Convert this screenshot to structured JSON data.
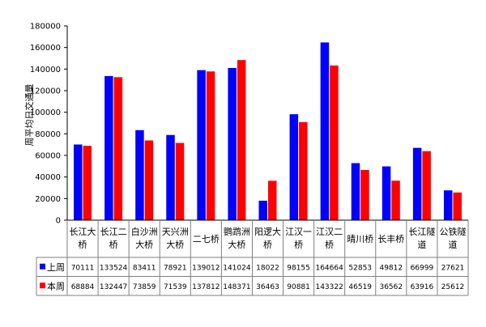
{
  "chart_data": {
    "type": "bar",
    "ylabel": "周平均日交通量",
    "ylim": [
      0,
      180000
    ],
    "yticks": [
      0,
      20000,
      40000,
      60000,
      80000,
      100000,
      120000,
      140000,
      160000,
      180000
    ],
    "grid": "off",
    "legend": "data-table-left",
    "categories": [
      [
        "长江大",
        "桥"
      ],
      [
        "长江二",
        "桥"
      ],
      [
        "白沙洲",
        "大桥"
      ],
      [
        "天兴洲",
        "大桥"
      ],
      [
        "二七桥"
      ],
      [
        "鹦鹉洲",
        "大桥"
      ],
      [
        "阳逻大",
        "桥"
      ],
      [
        "江汉一",
        "桥"
      ],
      [
        "江汉二",
        "桥"
      ],
      [
        "晴川桥"
      ],
      [
        "长丰桥"
      ],
      [
        "长江隧",
        "道"
      ],
      [
        "公铁隧",
        "道"
      ]
    ],
    "series": [
      {
        "name": "上周",
        "color": "#0000ff",
        "values": [
          70111,
          133524,
          83411,
          78921,
          139012,
          141024,
          18022,
          98155,
          164664,
          52853,
          49812,
          66999,
          27621
        ]
      },
      {
        "name": "本周",
        "color": "#ff0000",
        "values": [
          68884,
          132447,
          73859,
          71539,
          137812,
          148371,
          36463,
          90881,
          143322,
          46519,
          36562,
          63916,
          25612
        ]
      }
    ]
  }
}
